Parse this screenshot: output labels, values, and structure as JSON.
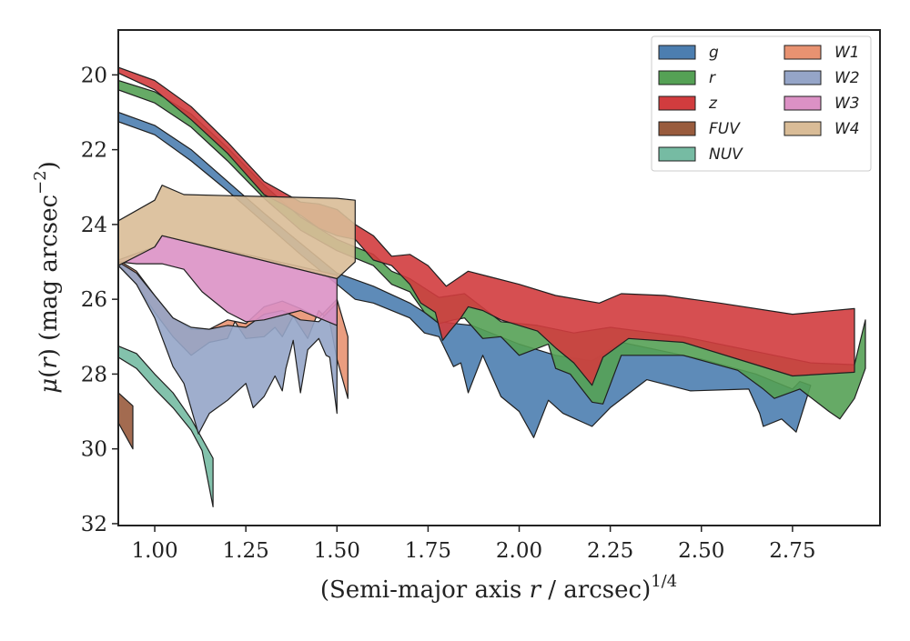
{
  "chart_data": {
    "type": "area",
    "xlabel": "(Semi-major axis r / arcsec)^{1/4}",
    "xlabel_parts": {
      "prefix": "(Semi-major axis ",
      "var": "r",
      "middle": " / arcsec)",
      "sup": "1/4"
    },
    "ylabel": "μ(r) (mag arcsec^-2)",
    "ylabel_parts": {
      "mu": "μ",
      "open": "(",
      "var": "r",
      "mid": ") (mag arcsec",
      "sup": "−2",
      "close": ")"
    },
    "xlim": [
      0.9,
      2.99
    ],
    "ylim": [
      32.05,
      18.8
    ],
    "y_inverted": true,
    "xticks": [
      1.0,
      1.25,
      1.5,
      1.75,
      2.0,
      2.25,
      2.5,
      2.75
    ],
    "xtick_labels": [
      "1.00",
      "1.25",
      "1.50",
      "1.75",
      "2.00",
      "2.25",
      "2.50",
      "2.75"
    ],
    "yticks": [
      20,
      22,
      24,
      26,
      28,
      30,
      32
    ],
    "ytick_labels": [
      "20",
      "22",
      "24",
      "26",
      "28",
      "30",
      "32"
    ],
    "legend_position": "top-right",
    "legend_columns": 2,
    "series": [
      {
        "name": "g",
        "color": "#4c7eb0",
        "upper": [
          [
            0.9,
            21.0
          ],
          [
            1.0,
            21.35
          ],
          [
            1.1,
            22.0
          ],
          [
            1.2,
            22.85
          ],
          [
            1.3,
            23.7
          ],
          [
            1.4,
            24.5
          ],
          [
            1.5,
            25.3
          ],
          [
            1.6,
            25.65
          ],
          [
            1.7,
            26.1
          ],
          [
            1.78,
            26.6
          ],
          [
            1.87,
            26.7
          ],
          [
            2.0,
            27.2
          ],
          [
            2.1,
            27.5
          ],
          [
            2.2,
            27.65
          ],
          [
            2.28,
            27.15
          ],
          [
            2.5,
            27.6
          ],
          [
            2.65,
            28.0
          ],
          [
            2.75,
            28.4
          ],
          [
            2.77,
            28.2
          ],
          [
            2.8,
            28.3
          ]
        ],
        "lower": [
          [
            0.9,
            21.25
          ],
          [
            1.0,
            21.6
          ],
          [
            1.1,
            22.3
          ],
          [
            1.2,
            23.1
          ],
          [
            1.3,
            23.95
          ],
          [
            1.4,
            24.8
          ],
          [
            1.5,
            25.6
          ],
          [
            1.55,
            26.0
          ],
          [
            1.6,
            26.1
          ],
          [
            1.7,
            26.5
          ],
          [
            1.74,
            26.9
          ],
          [
            1.78,
            27.0
          ],
          [
            1.82,
            27.8
          ],
          [
            1.84,
            27.7
          ],
          [
            1.86,
            28.5
          ],
          [
            1.9,
            27.5
          ],
          [
            1.95,
            28.6
          ],
          [
            2.0,
            29.0
          ],
          [
            2.04,
            29.7
          ],
          [
            2.08,
            28.7
          ],
          [
            2.12,
            29.05
          ],
          [
            2.2,
            29.4
          ],
          [
            2.25,
            28.9
          ],
          [
            2.35,
            28.15
          ],
          [
            2.47,
            28.45
          ],
          [
            2.63,
            28.4
          ],
          [
            2.66,
            29.05
          ],
          [
            2.67,
            29.4
          ],
          [
            2.72,
            29.2
          ],
          [
            2.76,
            29.55
          ]
        ]
      },
      {
        "name": "r",
        "color": "#55a155",
        "upper": [
          [
            0.9,
            20.15
          ],
          [
            1.0,
            20.45
          ],
          [
            1.1,
            21.05
          ],
          [
            1.2,
            21.95
          ],
          [
            1.3,
            22.95
          ],
          [
            1.4,
            23.8
          ],
          [
            1.5,
            24.4
          ],
          [
            1.6,
            24.8
          ],
          [
            1.65,
            25.25
          ],
          [
            1.7,
            25.45
          ],
          [
            1.78,
            25.95
          ],
          [
            1.85,
            25.85
          ],
          [
            1.95,
            26.6
          ],
          [
            2.05,
            26.7
          ],
          [
            2.15,
            26.9
          ],
          [
            2.25,
            26.75
          ],
          [
            2.45,
            27.0
          ],
          [
            2.65,
            27.4
          ],
          [
            2.8,
            27.7
          ],
          [
            2.92,
            27.75
          ],
          [
            2.95,
            26.55
          ]
        ],
        "lower": [
          [
            0.9,
            20.4
          ],
          [
            1.0,
            20.75
          ],
          [
            1.1,
            21.4
          ],
          [
            1.2,
            22.3
          ],
          [
            1.3,
            23.3
          ],
          [
            1.4,
            24.15
          ],
          [
            1.5,
            24.7
          ],
          [
            1.6,
            25.1
          ],
          [
            1.65,
            25.6
          ],
          [
            1.7,
            25.8
          ],
          [
            1.74,
            26.35
          ],
          [
            1.78,
            26.65
          ],
          [
            1.82,
            26.55
          ],
          [
            1.85,
            26.5
          ],
          [
            1.9,
            27.05
          ],
          [
            1.95,
            27.0
          ],
          [
            2.0,
            27.5
          ],
          [
            2.08,
            27.2
          ],
          [
            2.1,
            27.85
          ],
          [
            2.14,
            28.0
          ],
          [
            2.2,
            28.75
          ],
          [
            2.23,
            28.8
          ],
          [
            2.28,
            27.5
          ],
          [
            2.45,
            27.5
          ],
          [
            2.6,
            27.9
          ],
          [
            2.67,
            28.4
          ],
          [
            2.7,
            28.65
          ],
          [
            2.77,
            28.4
          ],
          [
            2.85,
            29.0
          ],
          [
            2.88,
            29.2
          ],
          [
            2.92,
            28.65
          ],
          [
            2.95,
            27.85
          ]
        ]
      },
      {
        "name": "z",
        "color": "#d13c3e",
        "upper": [
          [
            0.9,
            19.8
          ],
          [
            1.0,
            20.15
          ],
          [
            1.1,
            20.85
          ],
          [
            1.2,
            21.8
          ],
          [
            1.3,
            22.85
          ],
          [
            1.4,
            23.4
          ],
          [
            1.45,
            23.45
          ],
          [
            1.5,
            23.6
          ],
          [
            1.55,
            24.0
          ],
          [
            1.6,
            24.3
          ],
          [
            1.65,
            24.85
          ],
          [
            1.7,
            24.8
          ],
          [
            1.75,
            25.1
          ],
          [
            1.8,
            25.65
          ],
          [
            1.86,
            25.25
          ],
          [
            1.92,
            25.4
          ],
          [
            2.0,
            25.6
          ],
          [
            2.1,
            25.9
          ],
          [
            2.22,
            26.1
          ],
          [
            2.28,
            25.85
          ],
          [
            2.4,
            25.9
          ],
          [
            2.55,
            26.1
          ],
          [
            2.75,
            26.4
          ],
          [
            2.92,
            26.25
          ]
        ],
        "lower": [
          [
            0.9,
            19.95
          ],
          [
            1.0,
            20.4
          ],
          [
            1.1,
            21.2
          ],
          [
            1.2,
            22.1
          ],
          [
            1.3,
            23.2
          ],
          [
            1.35,
            23.45
          ],
          [
            1.4,
            23.75
          ],
          [
            1.45,
            24.1
          ],
          [
            1.5,
            24.3
          ],
          [
            1.55,
            24.4
          ],
          [
            1.6,
            24.95
          ],
          [
            1.65,
            25.1
          ],
          [
            1.7,
            25.6
          ],
          [
            1.73,
            26.1
          ],
          [
            1.77,
            26.35
          ],
          [
            1.79,
            27.1
          ],
          [
            1.81,
            26.85
          ],
          [
            1.84,
            26.5
          ],
          [
            1.86,
            26.2
          ],
          [
            1.9,
            26.3
          ],
          [
            1.95,
            26.55
          ],
          [
            2.0,
            26.7
          ],
          [
            2.05,
            26.85
          ],
          [
            2.1,
            27.3
          ],
          [
            2.15,
            27.7
          ],
          [
            2.2,
            28.3
          ],
          [
            2.23,
            27.55
          ],
          [
            2.3,
            27.05
          ],
          [
            2.45,
            27.15
          ],
          [
            2.6,
            27.6
          ],
          [
            2.75,
            28.05
          ],
          [
            2.92,
            27.95
          ]
        ]
      },
      {
        "name": "FUV",
        "color": "#995b3d",
        "upper": [
          [
            0.9,
            28.5
          ],
          [
            0.94,
            28.85
          ]
        ],
        "lower": [
          [
            0.9,
            29.3
          ],
          [
            0.94,
            30.0
          ]
        ]
      },
      {
        "name": "NUV",
        "color": "#76bba3",
        "upper": [
          [
            0.9,
            27.25
          ],
          [
            0.95,
            27.45
          ],
          [
            1.0,
            28.0
          ],
          [
            1.05,
            28.5
          ],
          [
            1.1,
            29.2
          ],
          [
            1.16,
            30.25
          ]
        ],
        "lower": [
          [
            0.9,
            27.55
          ],
          [
            0.95,
            27.85
          ],
          [
            1.0,
            28.4
          ],
          [
            1.05,
            28.9
          ],
          [
            1.1,
            29.5
          ],
          [
            1.13,
            30.05
          ],
          [
            1.16,
            31.55
          ]
        ]
      },
      {
        "name": "W1",
        "color": "#e89271",
        "upper": [
          [
            0.9,
            24.95
          ],
          [
            0.95,
            25.25
          ],
          [
            1.0,
            25.9
          ],
          [
            1.05,
            26.5
          ],
          [
            1.1,
            26.8
          ],
          [
            1.15,
            26.8
          ],
          [
            1.2,
            26.55
          ],
          [
            1.25,
            26.65
          ],
          [
            1.3,
            26.2
          ],
          [
            1.35,
            26.05
          ],
          [
            1.4,
            26.25
          ],
          [
            1.45,
            26.5
          ],
          [
            1.5,
            26.0
          ],
          [
            1.53,
            27.0
          ]
        ],
        "lower": [
          [
            0.9,
            25.05
          ],
          [
            0.95,
            25.6
          ],
          [
            1.0,
            26.35
          ],
          [
            1.05,
            27.0
          ],
          [
            1.1,
            27.5
          ],
          [
            1.15,
            27.15
          ],
          [
            1.2,
            27.05
          ],
          [
            1.22,
            26.6
          ],
          [
            1.25,
            27.05
          ],
          [
            1.3,
            27.0
          ],
          [
            1.33,
            26.75
          ],
          [
            1.35,
            27.0
          ],
          [
            1.38,
            26.45
          ],
          [
            1.42,
            27.05
          ],
          [
            1.45,
            26.3
          ],
          [
            1.48,
            26.6
          ],
          [
            1.5,
            27.6
          ],
          [
            1.53,
            28.65
          ]
        ]
      },
      {
        "name": "W2",
        "color": "#95a5c8",
        "upper": [
          [
            0.9,
            25.0
          ],
          [
            0.95,
            25.3
          ],
          [
            1.0,
            25.9
          ],
          [
            1.05,
            26.5
          ],
          [
            1.1,
            26.75
          ],
          [
            1.15,
            26.8
          ],
          [
            1.2,
            26.7
          ],
          [
            1.25,
            26.75
          ],
          [
            1.3,
            26.4
          ],
          [
            1.35,
            26.3
          ],
          [
            1.4,
            26.55
          ],
          [
            1.45,
            26.6
          ],
          [
            1.5,
            26.1
          ]
        ],
        "lower": [
          [
            0.9,
            25.1
          ],
          [
            0.95,
            25.6
          ],
          [
            1.0,
            26.5
          ],
          [
            1.05,
            27.8
          ],
          [
            1.08,
            28.25
          ],
          [
            1.12,
            29.6
          ],
          [
            1.15,
            29.05
          ],
          [
            1.2,
            28.7
          ],
          [
            1.25,
            28.25
          ],
          [
            1.27,
            28.9
          ],
          [
            1.3,
            28.6
          ],
          [
            1.33,
            28.05
          ],
          [
            1.35,
            28.45
          ],
          [
            1.36,
            27.85
          ],
          [
            1.38,
            27.1
          ],
          [
            1.4,
            28.5
          ],
          [
            1.42,
            27.35
          ],
          [
            1.45,
            27.05
          ],
          [
            1.47,
            27.5
          ],
          [
            1.48,
            27.55
          ],
          [
            1.5,
            29.05
          ]
        ]
      },
      {
        "name": "W3",
        "color": "#dc91c5",
        "upper": [
          [
            0.9,
            24.95
          ],
          [
            1.0,
            24.6
          ],
          [
            1.02,
            24.3
          ],
          [
            1.5,
            25.35
          ]
        ],
        "lower": [
          [
            0.9,
            25.0
          ],
          [
            0.95,
            25.05
          ],
          [
            1.0,
            25.05
          ],
          [
            1.02,
            25.05
          ],
          [
            1.08,
            25.2
          ],
          [
            1.13,
            25.8
          ],
          [
            1.2,
            26.35
          ],
          [
            1.25,
            26.6
          ],
          [
            1.3,
            26.55
          ],
          [
            1.4,
            26.3
          ],
          [
            1.45,
            26.5
          ],
          [
            1.5,
            26.7
          ]
        ]
      },
      {
        "name": "W4",
        "color": "#d9bc97",
        "upper": [
          [
            0.9,
            23.9
          ],
          [
            1.0,
            23.35
          ],
          [
            1.02,
            22.95
          ],
          [
            1.08,
            23.2
          ],
          [
            1.5,
            23.3
          ],
          [
            1.55,
            23.35
          ]
        ],
        "lower": [
          [
            0.9,
            25.1
          ],
          [
            1.0,
            24.6
          ],
          [
            1.02,
            24.3
          ],
          [
            1.5,
            25.45
          ],
          [
            1.55,
            25.0
          ]
        ]
      }
    ],
    "legend_order": [
      "g",
      "r",
      "z",
      "FUV",
      "NUV",
      "W1",
      "W2",
      "W3",
      "W4"
    ]
  }
}
